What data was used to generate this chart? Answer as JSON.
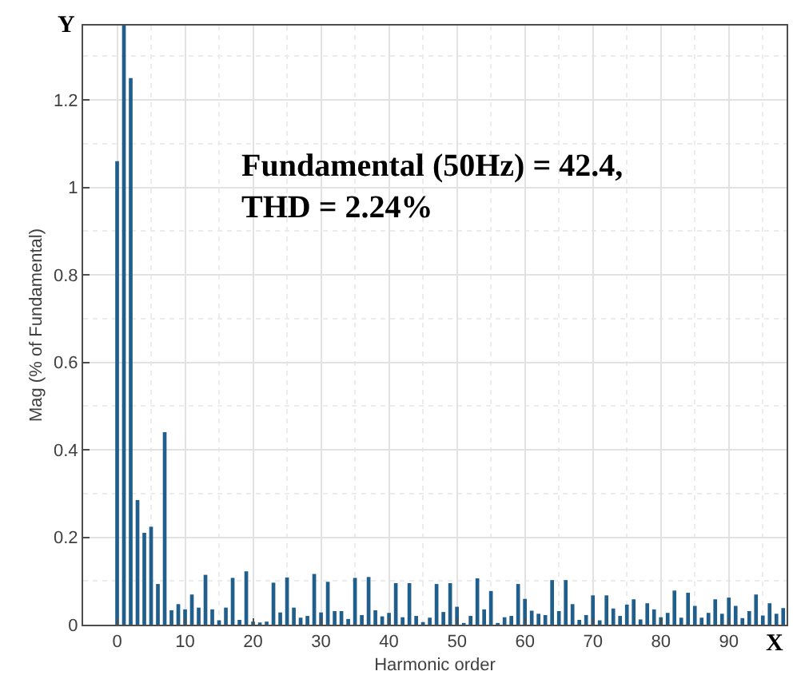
{
  "chart_data": {
    "type": "bar",
    "xlabel": "Harmonic order",
    "ylabel": "Mag (% of Fundamental)",
    "annotations": [
      "Fundamental (50Hz) = 42.4,\nTHD = 2.24%",
      "Y",
      "X"
    ],
    "x": [
      0,
      1,
      2,
      3,
      4,
      5,
      6,
      7,
      8,
      9,
      10,
      11,
      12,
      13,
      14,
      15,
      16,
      17,
      18,
      19,
      20,
      21,
      22,
      23,
      24,
      25,
      26,
      27,
      28,
      29,
      30,
      31,
      32,
      33,
      34,
      35,
      36,
      37,
      38,
      39,
      40,
      41,
      42,
      43,
      44,
      45,
      46,
      47,
      48,
      49,
      50,
      51,
      52,
      53,
      54,
      55,
      56,
      57,
      58,
      59,
      60,
      61,
      62,
      63,
      64,
      65,
      66,
      67,
      68,
      69,
      70,
      71,
      72,
      73,
      74,
      75,
      76,
      77,
      78,
      79,
      80,
      81,
      82,
      83,
      84,
      85,
      86,
      87,
      88,
      89,
      90,
      91,
      92,
      93,
      94,
      95,
      96,
      97,
      98
    ],
    "values": [
      1.06,
      1.37,
      1.25,
      0.285,
      0.21,
      0.224,
      0.093,
      0.44,
      0.033,
      0.047,
      0.035,
      0.069,
      0.039,
      0.114,
      0.035,
      0.01,
      0.039,
      0.107,
      0.011,
      0.122,
      0.007,
      0.005,
      0.007,
      0.096,
      0.028,
      0.108,
      0.039,
      0.016,
      0.02,
      0.116,
      0.028,
      0.098,
      0.031,
      0.031,
      0.013,
      0.107,
      0.022,
      0.109,
      0.033,
      0.019,
      0.027,
      0.095,
      0.017,
      0.095,
      0.02,
      0.006,
      0.016,
      0.093,
      0.029,
      0.095,
      0.041,
      0.004,
      0.02,
      0.106,
      0.035,
      0.077,
      0.004,
      0.017,
      0.02,
      0.093,
      0.059,
      0.032,
      0.025,
      0.022,
      0.102,
      0.031,
      0.102,
      0.047,
      0.011,
      0.022,
      0.067,
      0.01,
      0.067,
      0.037,
      0.02,
      0.046,
      0.058,
      0.012,
      0.049,
      0.035,
      0.017,
      0.027,
      0.078,
      0.016,
      0.073,
      0.043,
      0.016,
      0.027,
      0.058,
      0.025,
      0.062,
      0.043,
      0.015,
      0.031,
      0.069,
      0.021,
      0.049,
      0.025,
      0.038
    ],
    "color": "#205e8c",
    "xlim": [
      -5,
      98.5
    ],
    "ylim": [
      0,
      1.37
    ],
    "xticks": [
      0,
      10,
      20,
      30,
      40,
      50,
      60,
      70,
      80,
      90
    ],
    "yticks": [
      0,
      0.2,
      0.4,
      0.6,
      0.8,
      1,
      1.2
    ],
    "grid": true
  }
}
